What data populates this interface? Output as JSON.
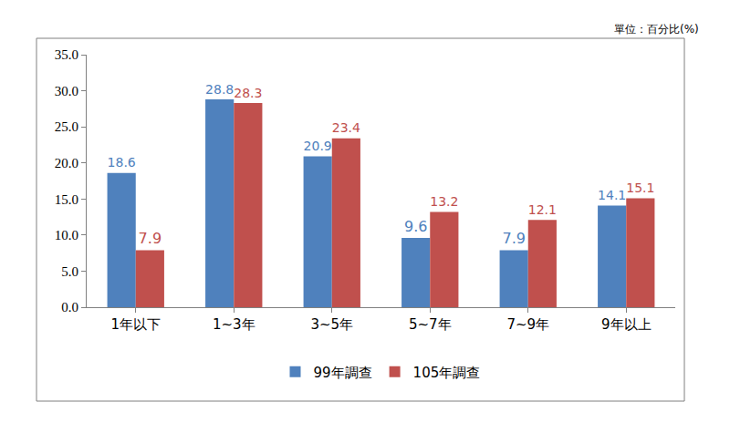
{
  "chart_data": {
    "type": "bar",
    "annotations": [
      "單位：百分比(%)"
    ],
    "categories": [
      "1年以下",
      "1~3年",
      "3~5年",
      "5~7年",
      "7~9年",
      "9年以上"
    ],
    "series": [
      {
        "name": "99年調查",
        "color": "#4F81BD",
        "values": [
          18.6,
          28.8,
          20.9,
          9.6,
          7.9,
          14.1
        ]
      },
      {
        "name": "105年調查",
        "color": "#C0504D",
        "values": [
          7.9,
          28.3,
          23.4,
          13.2,
          12.1,
          15.1
        ]
      }
    ],
    "ylim": [
      0,
      35
    ],
    "yticks": [
      {
        "value": 0,
        "label": "0.0"
      },
      {
        "value": 5,
        "label": "5.0"
      },
      {
        "value": 10,
        "label": "10.0"
      },
      {
        "value": 15,
        "label": "15.0"
      },
      {
        "value": 20,
        "label": "20.0"
      },
      {
        "value": 25,
        "label": "25.0"
      },
      {
        "value": 30,
        "label": "30.0"
      },
      {
        "value": 35,
        "label": "35.0"
      }
    ],
    "grid": false,
    "legend": "bottom",
    "data_labels": true
  }
}
